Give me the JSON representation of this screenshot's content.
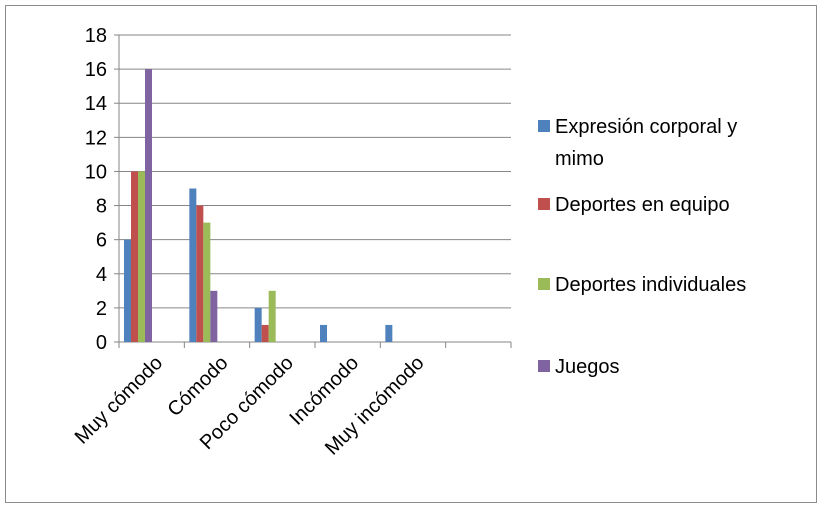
{
  "chart_data": {
    "type": "bar",
    "categories": [
      "Muy cómodo",
      "Cómodo",
      "Poco cómodo",
      "Incómodo",
      "Muy incómodo"
    ],
    "series": [
      {
        "name": "Expresión corporal y mimo",
        "color": "#4f81bd",
        "values": [
          6,
          9,
          2,
          1,
          1
        ]
      },
      {
        "name": "Deportes en equipo",
        "color": "#c0504d",
        "values": [
          10,
          8,
          1,
          0,
          0
        ]
      },
      {
        "name": "Deportes individuales",
        "color": "#9bbb59",
        "values": [
          10,
          7,
          3,
          0,
          0
        ]
      },
      {
        "name": "Juegos",
        "color": "#8064a2",
        "values": [
          16,
          3,
          0,
          0,
          0
        ]
      }
    ],
    "legend_lines": [
      [
        "Expresión corporal y",
        "mimo"
      ],
      [
        "Deportes en equipo"
      ],
      [
        "Deportes individuales"
      ],
      [
        "Juegos"
      ]
    ],
    "yticks": [
      "0",
      "2",
      "4",
      "6",
      "8",
      "10",
      "12",
      "14",
      "16",
      "18"
    ],
    "ylim": [
      0,
      18
    ],
    "grid": true,
    "legend_position": "right"
  }
}
